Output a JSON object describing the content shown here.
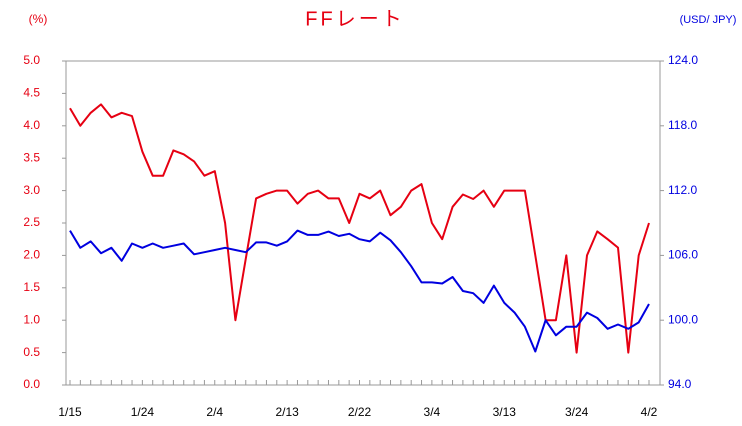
{
  "chart_data": {
    "type": "line",
    "title": "FFレート",
    "y_label": "(%)",
    "y2_label": "(USD/ JPY)",
    "categories": [
      "1/15",
      null,
      null,
      null,
      null,
      null,
      null,
      "1/24",
      null,
      null,
      null,
      null,
      null,
      null,
      "2/4",
      null,
      null,
      null,
      null,
      null,
      null,
      "2/13",
      null,
      null,
      null,
      null,
      null,
      null,
      "2/22",
      null,
      null,
      null,
      null,
      null,
      null,
      "3/4",
      null,
      null,
      null,
      null,
      null,
      null,
      "3/13",
      null,
      null,
      null,
      null,
      null,
      null,
      "3/24",
      null,
      null,
      null,
      null,
      null,
      null,
      "4/2"
    ],
    "series": [
      {
        "color": "#e60012",
        "axis": "y",
        "values": [
          4.27,
          4.0,
          4.2,
          4.33,
          4.13,
          4.2,
          4.15,
          3.6,
          3.23,
          3.23,
          3.62,
          3.56,
          3.45,
          3.23,
          3.3,
          2.5,
          1.0,
          1.95,
          2.88,
          2.95,
          3.0,
          3.0,
          2.8,
          2.95,
          3.0,
          2.88,
          2.88,
          2.5,
          2.95,
          2.88,
          3.0,
          2.62,
          2.75,
          3.0,
          3.1,
          2.5,
          2.25,
          2.75,
          2.94,
          2.87,
          3.0,
          2.75,
          3.0,
          3.0,
          3.0,
          2.0,
          1.0,
          1.0,
          2.0,
          0.5,
          2.0,
          2.37,
          2.25,
          2.12,
          0.5,
          2.0,
          2.5
        ]
      },
      {
        "color": "#0000e0",
        "axis": "y2",
        "values": [
          108.3,
          106.7,
          107.3,
          106.2,
          106.7,
          105.5,
          107.1,
          106.7,
          107.1,
          106.7,
          106.9,
          107.1,
          106.1,
          106.3,
          106.5,
          106.7,
          106.5,
          106.3,
          107.2,
          107.2,
          106.9,
          107.3,
          108.3,
          107.9,
          107.9,
          108.2,
          107.8,
          108.0,
          107.5,
          107.3,
          108.1,
          107.4,
          106.3,
          105.0,
          103.5,
          103.5,
          103.4,
          104.0,
          102.7,
          102.5,
          101.6,
          103.2,
          101.6,
          100.7,
          99.4,
          97.1,
          100.0,
          98.6,
          99.4,
          99.4,
          100.7,
          100.2,
          99.2,
          99.6,
          99.2,
          99.8,
          101.5
        ]
      }
    ],
    "ylim": [
      0,
      5
    ],
    "yticks": [
      {
        "value": 0,
        "label": "0.0"
      },
      0.5,
      {
        "value": 1,
        "label": "1.0"
      },
      1.5,
      {
        "value": 2,
        "label": "2.0"
      },
      2.5,
      {
        "value": 3,
        "label": "3.0"
      },
      3.5,
      {
        "value": 4,
        "label": "4.0"
      },
      4.5,
      {
        "value": 5,
        "label": "5.0"
      }
    ],
    "y2lim": [
      94,
      124
    ],
    "y2ticks": [
      {
        "value": 94,
        "label": "94.0"
      },
      {
        "value": 100,
        "label": "100.0"
      },
      {
        "value": 106,
        "label": "106.0"
      },
      {
        "value": 112,
        "label": "112.0"
      },
      {
        "value": 118,
        "label": "118.0"
      },
      {
        "value": 124,
        "label": "124.0"
      }
    ],
    "y_color": "#e60012",
    "y2_color": "#0000e0"
  }
}
